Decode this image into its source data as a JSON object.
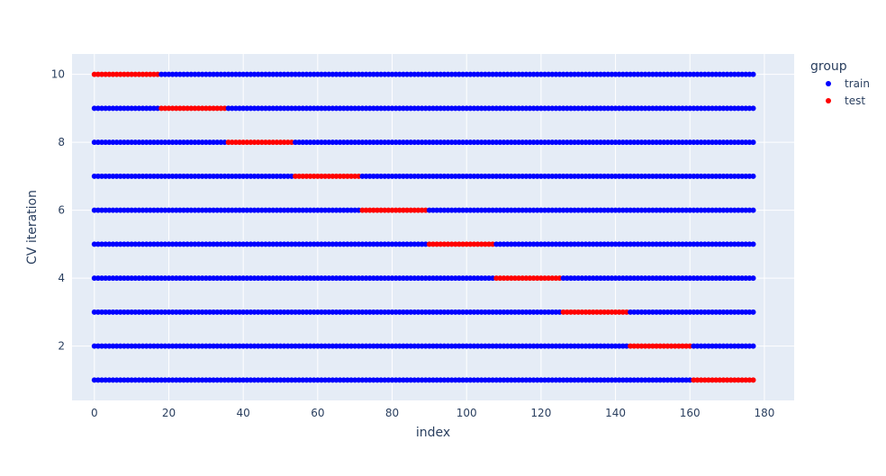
{
  "chart_data": {
    "type": "scatter",
    "xlabel": "index",
    "ylabel": "CV iteration",
    "xlim": [
      -6,
      188
    ],
    "ylim": [
      0.4,
      10.6
    ],
    "x_ticks": [
      0,
      20,
      40,
      60,
      80,
      100,
      120,
      140,
      160,
      180
    ],
    "y_ticks": [
      2,
      4,
      6,
      8,
      10
    ],
    "grid": true,
    "legend": {
      "title": "group",
      "position": "top-right",
      "entries": [
        {
          "name": "train",
          "color": "#0000ff"
        },
        {
          "name": "test",
          "color": "#ff0000"
        }
      ]
    },
    "index_range": [
      0,
      177
    ],
    "colors": {
      "train": "#0000ff",
      "test": "#ff0000",
      "plot_bg": "#e5ecf6",
      "grid": "#ffffff"
    },
    "iterations": [
      {
        "cv_iteration": 10,
        "test_range": [
          0,
          17
        ]
      },
      {
        "cv_iteration": 9,
        "test_range": [
          18,
          35
        ]
      },
      {
        "cv_iteration": 8,
        "test_range": [
          36,
          53
        ]
      },
      {
        "cv_iteration": 7,
        "test_range": [
          54,
          71
        ]
      },
      {
        "cv_iteration": 6,
        "test_range": [
          72,
          89
        ]
      },
      {
        "cv_iteration": 5,
        "test_range": [
          90,
          107
        ]
      },
      {
        "cv_iteration": 4,
        "test_range": [
          108,
          125
        ]
      },
      {
        "cv_iteration": 3,
        "test_range": [
          126,
          143
        ]
      },
      {
        "cv_iteration": 2,
        "test_range": [
          144,
          160
        ]
      },
      {
        "cv_iteration": 1,
        "test_range": [
          161,
          177
        ]
      }
    ]
  }
}
